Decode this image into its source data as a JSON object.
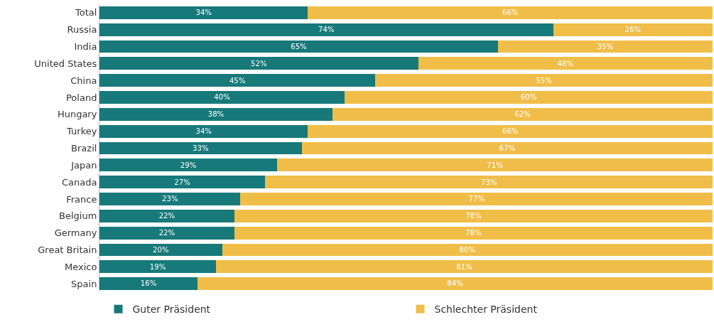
{
  "chart_data": {
    "type": "bar",
    "orientation": "horizontal",
    "stacked": true,
    "categories": [
      "Total",
      "Russia",
      "India",
      "United States",
      "China",
      "Poland",
      "Hungary",
      "Turkey",
      "Brazil",
      "Japan",
      "Canada",
      "France",
      "Belgium",
      "Germany",
      "Great Britain",
      "Mexico",
      "Spain"
    ],
    "series": [
      {
        "name": "Guter Präsident",
        "color": "#17797a",
        "values": [
          34,
          74,
          65,
          52,
          45,
          40,
          38,
          34,
          33,
          29,
          27,
          23,
          22,
          22,
          20,
          19,
          16
        ],
        "value_labels": [
          "34%",
          "74%",
          "65%",
          "52%",
          "45%",
          "40%",
          "38%",
          "34%",
          "33%",
          "29%",
          "27%",
          "23%",
          "22%",
          "22%",
          "20%",
          "19%",
          "16%"
        ]
      },
      {
        "name": "Schlechter Präsident",
        "color": "#f0be48",
        "values": [
          66,
          26,
          35,
          48,
          55,
          60,
          62,
          66,
          67,
          71,
          73,
          77,
          78,
          78,
          80,
          81,
          84
        ],
        "value_labels": [
          "66%",
          "26%",
          "35%",
          "48%",
          "55%",
          "60%",
          "62%",
          "66%",
          "67%",
          "71%",
          "73%",
          "77%",
          "78%",
          "78%",
          "80%",
          "81%",
          "84%"
        ]
      }
    ],
    "xlim": [
      0,
      100
    ],
    "tick_labels": "y",
    "legend": "bottom"
  }
}
